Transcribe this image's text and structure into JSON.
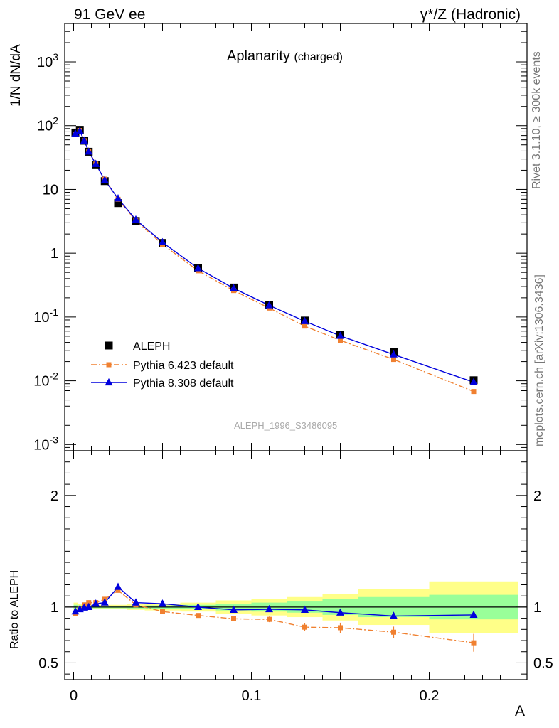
{
  "header": {
    "left": "91 GeV ee",
    "right": "γ*/Z (Hadronic)"
  },
  "side_labels": {
    "rivet": "Rivet 3.1.10, ≥ 300k events",
    "source": "mcplots.cern.ch [arXiv:1306.3436]"
  },
  "chart_data": [
    {
      "type": "scatter",
      "name": "main",
      "title": "Aplanarity",
      "subtitle": "(charged)",
      "ylabel": "1/N dN/dA",
      "xlabel": "A",
      "yscale": "log",
      "xlim": [
        -0.005,
        0.255
      ],
      "ylim": [
        0.0008,
        4000
      ],
      "ytick_labels": [
        "10^-3",
        "10^-2",
        "10^-1",
        "1",
        "10",
        "10^2",
        "10^3"
      ],
      "watermark": "ALEPH_1996_S3486095",
      "legend": [
        "ALEPH",
        "Pythia 6.423 default",
        "Pythia 8.308 default"
      ],
      "x": [
        0.001,
        0.0035,
        0.006,
        0.0085,
        0.0125,
        0.0175,
        0.025,
        0.035,
        0.05,
        0.07,
        0.09,
        0.11,
        0.13,
        0.15,
        0.18,
        0.225
      ],
      "series": [
        {
          "name": "ALEPH",
          "color": "#000000",
          "values": [
            78,
            86,
            58,
            39,
            24,
            13.5,
            6.1,
            3.2,
            1.45,
            0.58,
            0.29,
            0.155,
            0.088,
            0.053,
            0.028,
            0.0102
          ]
        },
        {
          "name": "Pythia 6.423 default",
          "color": "#f08030",
          "values": [
            73,
            84,
            58,
            40,
            25,
            14.5,
            7.0,
            3.25,
            1.38,
            0.53,
            0.26,
            0.138,
            0.072,
            0.043,
            0.0216,
            0.0068
          ]
        },
        {
          "name": "Pythia 8.308 default",
          "color": "#0000dd",
          "values": [
            75,
            82,
            58,
            39,
            25,
            14.0,
            7.2,
            3.35,
            1.48,
            0.58,
            0.282,
            0.152,
            0.086,
            0.0505,
            0.0258,
            0.0095
          ]
        }
      ]
    },
    {
      "type": "line",
      "name": "ratio",
      "ylabel": "Ratio to ALEPH",
      "xlabel": "A",
      "xlim": [
        -0.005,
        0.255
      ],
      "ylim": [
        0.35,
        2.4
      ],
      "x_tick_labels": [
        "0",
        "0.1",
        "0.2"
      ],
      "y_tick_labels": [
        "0.5",
        "1",
        "2"
      ],
      "bin_edges": [
        0,
        0.0025,
        0.005,
        0.0075,
        0.01,
        0.015,
        0.02,
        0.03,
        0.04,
        0.06,
        0.08,
        0.1,
        0.12,
        0.14,
        0.16,
        0.2,
        0.25
      ],
      "band_inner": [
        0.02,
        0.015,
        0.012,
        0.01,
        0.01,
        0.01,
        0.01,
        0.012,
        0.015,
        0.02,
        0.03,
        0.04,
        0.05,
        0.07,
        0.09,
        0.11
      ],
      "band_outer": [
        0.04,
        0.03,
        0.025,
        0.02,
        0.02,
        0.02,
        0.02,
        0.025,
        0.03,
        0.04,
        0.06,
        0.075,
        0.09,
        0.12,
        0.16,
        0.23
      ],
      "x": [
        0.001,
        0.0035,
        0.006,
        0.0085,
        0.0125,
        0.0175,
        0.025,
        0.035,
        0.05,
        0.07,
        0.09,
        0.11,
        0.13,
        0.15,
        0.18,
        0.225
      ],
      "series": [
        {
          "name": "Pythia 6.423 default",
          "color": "#f08030",
          "values": [
            0.94,
            0.98,
            1.02,
            1.04,
            1.04,
            1.07,
            1.15,
            1.02,
            0.96,
            0.925,
            0.895,
            0.89,
            0.82,
            0.815,
            0.775,
            0.68
          ],
          "errors": [
            0.01,
            0.01,
            0.01,
            0.01,
            0.01,
            0.01,
            0.01,
            0.01,
            0.01,
            0.015,
            0.02,
            0.025,
            0.035,
            0.045,
            0.05,
            0.08
          ]
        },
        {
          "name": "Pythia 8.308 default",
          "color": "#0000dd",
          "values": [
            0.96,
            0.98,
            0.995,
            1.0,
            1.03,
            1.04,
            1.18,
            1.04,
            1.03,
            1.0,
            0.975,
            0.98,
            0.975,
            0.95,
            0.92,
            0.93
          ],
          "errors": [
            0.01,
            0.01,
            0.01,
            0.01,
            0.01,
            0.01,
            0.01,
            0.01,
            0.01,
            0.01,
            0.01,
            0.01,
            0.012,
            0.012,
            0.015,
            0.025
          ]
        }
      ]
    }
  ]
}
